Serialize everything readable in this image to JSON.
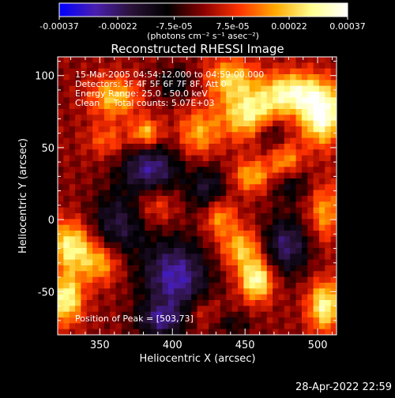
{
  "chart_data": {
    "type": "heatmap",
    "title": "Reconstructed RHESSI Image",
    "xlabel": "Heliocentric X (arcsec)",
    "ylabel": "Heliocentric Y (arcsec)",
    "xlim": [
      321,
      513
    ],
    "ylim": [
      -80,
      113
    ],
    "x_ticks": [
      350,
      400,
      450,
      500
    ],
    "y_ticks": [
      -50,
      0,
      50,
      100
    ],
    "annotations": [
      "15-Mar-2005 04:54:12.000 to 04:59:00.000",
      "Detectors: 3F 4F 5F 6F 7F 8F, Att 0",
      "Energy Range: 25.0 - 50.0 keV",
      "Clean     Total counts: 5.07E+03"
    ],
    "peak_label": "Position of Peak = [503,73]",
    "peak": [
      503,
      73
    ],
    "colorbar": {
      "range": [
        -0.00037,
        0.00037
      ],
      "tick_labels": [
        "-0.00037",
        "-0.00022",
        "-7.5e-05",
        "7.5e-05",
        "0.00022",
        "0.00037"
      ],
      "units_label": "(photons cm⁻² s⁻¹ asec⁻²)",
      "colors": [
        "#0000ff",
        "#4a1fb0",
        "#2a1238",
        "#000000",
        "#8a0000",
        "#ff3300",
        "#ffaa00",
        "#ffff90",
        "#ffffff"
      ]
    },
    "sources": [
      {
        "x": 503,
        "y": 73,
        "value": 0.00037,
        "sx": 10,
        "sy": 14
      },
      {
        "x": 482,
        "y": 88,
        "value": 0.0003,
        "sx": 14,
        "sy": 10
      },
      {
        "x": 453,
        "y": 73,
        "value": 0.00028,
        "sx": 14,
        "sy": 12
      },
      {
        "x": 440,
        "y": 98,
        "value": 0.00022,
        "sx": 12,
        "sy": 10
      },
      {
        "x": 418,
        "y": 60,
        "value": 0.00018,
        "sx": 10,
        "sy": 12
      },
      {
        "x": 455,
        "y": 30,
        "value": 0.0002,
        "sx": 10,
        "sy": 8
      },
      {
        "x": 478,
        "y": 40,
        "value": 0.00018,
        "sx": 8,
        "sy": 10
      },
      {
        "x": 360,
        "y": 85,
        "value": 0.00022,
        "sx": 12,
        "sy": 10
      },
      {
        "x": 382,
        "y": 60,
        "value": 0.00022,
        "sx": 7,
        "sy": 7
      },
      {
        "x": 355,
        "y": 55,
        "value": 0.00012,
        "sx": 10,
        "sy": 8
      },
      {
        "x": 388,
        "y": 10,
        "value": 0.00012,
        "sx": 10,
        "sy": 10
      },
      {
        "x": 432,
        "y": 3,
        "value": 0.0002,
        "sx": 8,
        "sy": 10
      },
      {
        "x": 330,
        "y": -18,
        "value": 0.00028,
        "sx": 10,
        "sy": 12
      },
      {
        "x": 350,
        "y": -30,
        "value": 0.0002,
        "sx": 10,
        "sy": 10
      },
      {
        "x": 327,
        "y": -55,
        "value": 0.0003,
        "sx": 8,
        "sy": 12
      },
      {
        "x": 458,
        "y": -42,
        "value": 0.00032,
        "sx": 8,
        "sy": 10
      },
      {
        "x": 448,
        "y": -20,
        "value": 0.00022,
        "sx": 10,
        "sy": 10
      },
      {
        "x": 505,
        "y": -60,
        "value": 0.0003,
        "sx": 8,
        "sy": 12
      },
      {
        "x": 505,
        "y": 5,
        "value": 0.00018,
        "sx": 8,
        "sy": 14
      },
      {
        "x": 420,
        "y": -65,
        "value": 0.0001,
        "sx": 10,
        "sy": 8
      },
      {
        "x": 385,
        "y": 35,
        "value": -0.00025,
        "sx": 14,
        "sy": 12
      },
      {
        "x": 363,
        "y": -3,
        "value": -0.00018,
        "sx": 14,
        "sy": 16
      },
      {
        "x": 402,
        "y": -40,
        "value": -0.00028,
        "sx": 16,
        "sy": 18
      },
      {
        "x": 425,
        "y": 20,
        "value": -0.00018,
        "sx": 10,
        "sy": 12
      },
      {
        "x": 478,
        "y": -18,
        "value": -0.00022,
        "sx": 12,
        "sy": 14
      },
      {
        "x": 480,
        "y": 25,
        "value": -0.00015,
        "sx": 10,
        "sy": 8
      },
      {
        "x": 468,
        "y": 60,
        "value": -0.00015,
        "sx": 8,
        "sy": 8
      },
      {
        "x": 402,
        "y": 95,
        "value": -0.00012,
        "sx": 10,
        "sy": 8
      },
      {
        "x": 392,
        "y": -70,
        "value": -0.0002,
        "sx": 12,
        "sy": 8
      },
      {
        "x": 440,
        "y": -72,
        "value": -0.0001,
        "sx": 10,
        "sy": 6
      }
    ]
  },
  "footer_timestamp": "28-Apr-2022 22:59"
}
